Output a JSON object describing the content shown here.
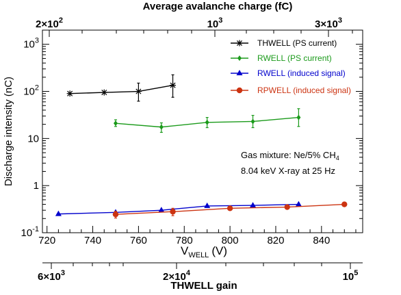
{
  "chart_data": {
    "type": "line",
    "xlabel": "V",
    "xlabel_sub": "WELL",
    "xlabel_unit": "(V)",
    "ylabel": "Discharge intensity (nC)",
    "xlim": [
      718,
      858
    ],
    "ylim": [
      0.1,
      2000
    ],
    "y_scale": "log",
    "x_ticks": [
      "720",
      "740",
      "760",
      "780",
      "800",
      "820",
      "840"
    ],
    "y_ticks": [
      {
        "base": "10",
        "exp": "-1"
      },
      {
        "base": "1",
        "exp": ""
      },
      {
        "base": "10",
        "exp": ""
      },
      {
        "base": "10",
        "exp": "2"
      },
      {
        "base": "10",
        "exp": "3"
      }
    ],
    "legend_position": "top-right",
    "annotations": [
      "Gas mixture: Ne/5% CH",
      "8.04 keV X-ray at 25 Hz"
    ],
    "annotation_sub": "4",
    "top_axis": {
      "label": "Average avalanche charge (fC)",
      "ticks": [
        {
          "mant": "2",
          "base": "10",
          "exp": "2"
        },
        {
          "mant": "",
          "base": "10",
          "exp": "3"
        },
        {
          "mant": "3",
          "base": "10",
          "exp": "3"
        }
      ]
    },
    "bottom_axis": {
      "label": "THWELL gain",
      "ticks": [
        {
          "mant": "6",
          "base": "10",
          "exp": "3"
        },
        {
          "mant": "2",
          "base": "10",
          "exp": "4"
        },
        {
          "mant": "",
          "base": "10",
          "exp": "5"
        }
      ]
    },
    "series": [
      {
        "name": "THWELL (PS current)",
        "color": "#000000",
        "marker": "asterisk",
        "x": [
          730,
          745,
          760,
          775
        ],
        "y": [
          90,
          95,
          100,
          135
        ],
        "err_low": [
          0,
          0,
          38,
          60
        ],
        "err_high": [
          0,
          0,
          50,
          90
        ]
      },
      {
        "name": "RWELL (PS current)",
        "color": "#1a9a1a",
        "marker": "diamond",
        "x": [
          750,
          770,
          790,
          810,
          830
        ],
        "y": [
          21,
          17.5,
          22,
          23,
          28
        ],
        "err_low": [
          3,
          4,
          5,
          6,
          10
        ],
        "err_high": [
          4,
          4,
          6,
          8,
          15
        ]
      },
      {
        "name": "RWELL (induced signal)",
        "color": "#0000cc",
        "marker": "triangle",
        "x": [
          725,
          750,
          770,
          790,
          810,
          830
        ],
        "y": [
          0.25,
          0.27,
          0.3,
          0.37,
          0.38,
          0.4
        ],
        "err_low": [
          0,
          0,
          0,
          0,
          0,
          0
        ],
        "err_high": [
          0,
          0,
          0,
          0,
          0,
          0
        ]
      },
      {
        "name": "RPWELL (induced signal)",
        "color": "#cc3311",
        "marker": "circle",
        "x": [
          750,
          775,
          800,
          825,
          850
        ],
        "y": [
          0.245,
          0.28,
          0.33,
          0.35,
          0.4
        ],
        "err_low": [
          0.04,
          0.05,
          0,
          0,
          0
        ],
        "err_high": [
          0.04,
          0.05,
          0,
          0,
          0
        ]
      }
    ]
  }
}
